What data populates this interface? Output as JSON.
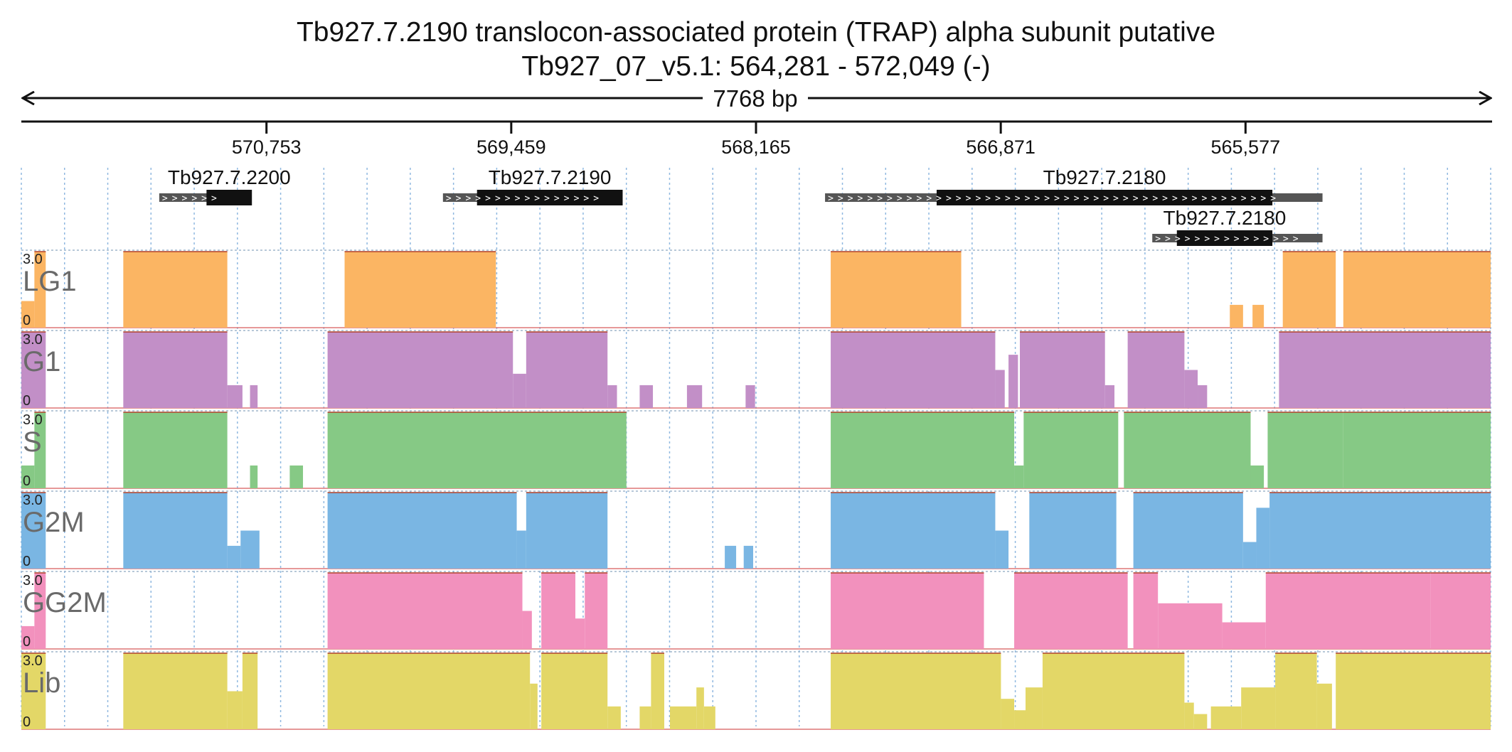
{
  "header": {
    "title": "Tb927.7.2190  translocon-associated protein (TRAP)  alpha subunit  putative",
    "location": "Tb927_07_v5.1: 564,281 - 572,049 (-)"
  },
  "region": {
    "chromosome": "Tb927_07_v5.1",
    "start": 564281,
    "end": 572049,
    "strand": "-",
    "span_label": "7768 bp"
  },
  "ruler": {
    "ticks": [
      {
        "label": "570,753",
        "pos": 570753
      },
      {
        "label": "569,459",
        "pos": 569459
      },
      {
        "label": "568,165",
        "pos": 568165
      },
      {
        "label": "566,871",
        "pos": 566871
      },
      {
        "label": "565,577",
        "pos": 565577
      }
    ]
  },
  "genes": [
    {
      "name": "Tb927.7.2200",
      "show_label": true,
      "row": 0,
      "utr": [
        571320,
        570920
      ],
      "cds": [
        571070,
        570830
      ]
    },
    {
      "name": "Tb927.7.2190",
      "show_label": true,
      "row": 0,
      "utr": [
        569820,
        568870
      ],
      "cds": [
        569640,
        568870
      ]
    },
    {
      "name": "Tb927.7.2180",
      "show_label": true,
      "row": 0,
      "utr": [
        567800,
        565170
      ],
      "cds": [
        567210,
        565435
      ]
    },
    {
      "name": "Tb927.7.2180",
      "show_label": true,
      "row": 1,
      "utr": [
        566070,
        565170
      ],
      "cds": [
        565940,
        565435
      ]
    }
  ],
  "tracks": [
    {
      "name": "LG1",
      "color": "#fbb563",
      "max_label": "3.0",
      "min_label": "0",
      "segments": [
        [
          572049,
          571980,
          0.35
        ],
        [
          571980,
          571920,
          1.0
        ],
        [
          571510,
          570960,
          1.0
        ],
        [
          570340,
          569540,
          1.0
        ],
        [
          567770,
          567080,
          1.0
        ],
        [
          565660,
          565590,
          0.3
        ],
        [
          565540,
          565480,
          0.3
        ],
        [
          565380,
          565100,
          1.0
        ],
        [
          565060,
          564281,
          1.0
        ]
      ]
    },
    {
      "name": "G1",
      "color": "#c28fc7",
      "max_label": "3.0",
      "min_label": "0",
      "segments": [
        [
          572049,
          571920,
          1.0
        ],
        [
          571510,
          570960,
          1.0
        ],
        [
          570960,
          570880,
          0.3
        ],
        [
          570880,
          570840,
          0.0
        ],
        [
          570840,
          570800,
          0.3
        ],
        [
          570430,
          569450,
          1.0
        ],
        [
          569450,
          569380,
          0.45
        ],
        [
          569380,
          568950,
          1.0
        ],
        [
          568950,
          568900,
          0.3
        ],
        [
          568780,
          568710,
          0.3
        ],
        [
          568530,
          568450,
          0.3
        ],
        [
          568220,
          568170,
          0.3
        ],
        [
          567770,
          566900,
          1.0
        ],
        [
          566900,
          566850,
          0.5
        ],
        [
          566830,
          566780,
          0.7
        ],
        [
          566770,
          566320,
          1.0
        ],
        [
          566320,
          566270,
          0.3
        ],
        [
          566200,
          565900,
          1.0
        ],
        [
          565900,
          565830,
          0.5
        ],
        [
          565830,
          565780,
          0.3
        ],
        [
          565400,
          564281,
          1.0
        ]
      ]
    },
    {
      "name": "S",
      "color": "#86c985",
      "max_label": "3.0",
      "min_label": "0",
      "segments": [
        [
          572049,
          571980,
          0.3
        ],
        [
          571980,
          571920,
          1.0
        ],
        [
          571510,
          570960,
          1.0
        ],
        [
          570840,
          570800,
          0.3
        ],
        [
          570630,
          570560,
          0.3
        ],
        [
          570430,
          568850,
          1.0
        ],
        [
          567770,
          566800,
          1.0
        ],
        [
          566800,
          566750,
          0.3
        ],
        [
          566750,
          566250,
          1.0
        ],
        [
          566220,
          565550,
          1.0
        ],
        [
          565550,
          565480,
          0.3
        ],
        [
          565460,
          565060,
          1.0
        ],
        [
          565060,
          564281,
          1.0
        ]
      ]
    },
    {
      "name": "G2M",
      "color": "#7ab6e3",
      "max_label": "3.0",
      "min_label": "0",
      "segments": [
        [
          572049,
          571920,
          1.0
        ],
        [
          571510,
          570960,
          1.0
        ],
        [
          570960,
          570890,
          0.3
        ],
        [
          570890,
          570790,
          0.5
        ],
        [
          570430,
          569430,
          1.0
        ],
        [
          569430,
          569380,
          0.5
        ],
        [
          569380,
          568950,
          1.0
        ],
        [
          568330,
          568270,
          0.3
        ],
        [
          568230,
          568180,
          0.3
        ],
        [
          567770,
          566900,
          1.0
        ],
        [
          566900,
          566830,
          0.5
        ],
        [
          566720,
          566260,
          1.0
        ],
        [
          566170,
          565590,
          1.0
        ],
        [
          565590,
          565520,
          0.35
        ],
        [
          565520,
          565450,
          0.8
        ],
        [
          565450,
          564281,
          1.0
        ]
      ]
    },
    {
      "name": "GG2M",
      "color": "#f291bd",
      "max_label": "3.0",
      "min_label": "0",
      "segments": [
        [
          572049,
          571980,
          0.3
        ],
        [
          571980,
          571920,
          1.0
        ],
        [
          570430,
          569400,
          1.0
        ],
        [
          569400,
          569350,
          0.5
        ],
        [
          569300,
          569120,
          1.0
        ],
        [
          569120,
          569070,
          0.4
        ],
        [
          569070,
          568950,
          1.0
        ],
        [
          567770,
          566960,
          1.0
        ],
        [
          566800,
          566200,
          1.0
        ],
        [
          566170,
          566040,
          1.0
        ],
        [
          566040,
          565700,
          0.6
        ],
        [
          565700,
          565470,
          0.35
        ],
        [
          565470,
          564600,
          1.0
        ],
        [
          564600,
          564281,
          1.0
        ]
      ]
    },
    {
      "name": "Lib",
      "color": "#e3d767",
      "max_label": "3.0",
      "min_label": "0",
      "segments": [
        [
          572049,
          571920,
          1.0
        ],
        [
          571510,
          570960,
          1.0
        ],
        [
          570960,
          570880,
          0.5
        ],
        [
          570880,
          570800,
          1.0
        ],
        [
          570430,
          569360,
          1.0
        ],
        [
          569360,
          569320,
          0.6
        ],
        [
          569300,
          568950,
          1.0
        ],
        [
          568950,
          568880,
          0.3
        ],
        [
          568780,
          568720,
          0.3
        ],
        [
          568720,
          568650,
          1.0
        ],
        [
          568620,
          568480,
          0.3
        ],
        [
          568480,
          568440,
          0.55
        ],
        [
          568440,
          568380,
          0.3
        ],
        [
          567770,
          566870,
          1.0
        ],
        [
          566870,
          566800,
          0.4
        ],
        [
          566800,
          566740,
          0.25
        ],
        [
          566740,
          566650,
          0.55
        ],
        [
          566650,
          565900,
          1.0
        ],
        [
          565900,
          565850,
          0.35
        ],
        [
          565850,
          565780,
          0.2
        ],
        [
          565760,
          565600,
          0.3
        ],
        [
          565600,
          565420,
          0.55
        ],
        [
          565420,
          565200,
          1.0
        ],
        [
          565200,
          565120,
          0.6
        ],
        [
          565100,
          564281,
          1.0
        ]
      ]
    }
  ]
}
